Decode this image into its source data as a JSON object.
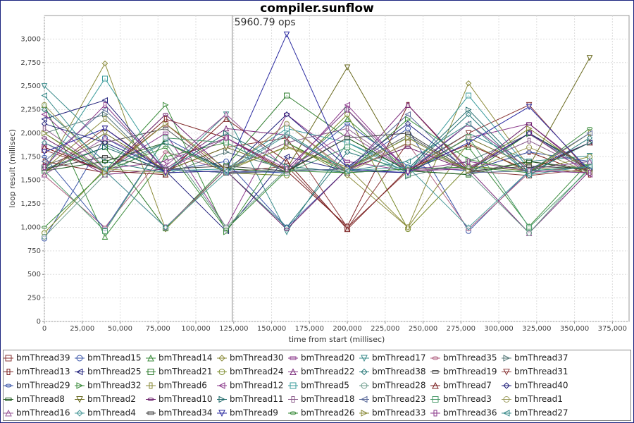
{
  "chart_data": {
    "type": "line",
    "title": "compiler.sunflow",
    "x_label": "time from start (millisec)",
    "y_label": "loop result (millisec)",
    "annotation": {
      "x": 124000,
      "label": "5960.79 ops"
    },
    "xlim": [
      0,
      386000
    ],
    "ylim": [
      0,
      3250
    ],
    "grid": true,
    "xticks": [
      0,
      {
        "value": 25000,
        "label": "25,000"
      },
      {
        "value": 50000,
        "label": "50,000"
      },
      {
        "value": 75000,
        "label": "75,000"
      },
      {
        "value": 100000,
        "label": "100,000"
      },
      {
        "value": 125000,
        "label": "125,000"
      },
      {
        "value": 150000,
        "label": "150,000"
      },
      {
        "value": 175000,
        "label": "175,000"
      },
      {
        "value": 200000,
        "label": "200,000"
      },
      {
        "value": 225000,
        "label": "225,000"
      },
      {
        "value": 250000,
        "label": "250,000"
      },
      {
        "value": 275000,
        "label": "275,000"
      },
      {
        "value": 300000,
        "label": "300,000"
      },
      {
        "value": 325000,
        "label": "325,000"
      },
      {
        "value": 350000,
        "label": "350,000"
      },
      {
        "value": 375000,
        "label": "375,000"
      }
    ],
    "yticks": [
      0,
      250,
      500,
      750,
      {
        "value": 1000,
        "label": "1,000"
      },
      {
        "value": 1250,
        "label": "1,250"
      },
      {
        "value": 1500,
        "label": "1,500"
      },
      {
        "value": 1750,
        "label": "1,750"
      },
      {
        "value": 2000,
        "label": "2,000"
      },
      {
        "value": 2250,
        "label": "2,250"
      },
      {
        "value": 2500,
        "label": "2,500"
      },
      {
        "value": 2750,
        "label": "2,750"
      },
      {
        "value": 3000,
        "label": "3,000"
      }
    ],
    "x": [
      0,
      40000,
      80000,
      120000,
      160000,
      200000,
      240000,
      280000,
      320000,
      360000
    ],
    "series": [
      {
        "name": "bmThread39",
        "color": "#8b3a3a",
        "values": [
          1820,
          1600,
          2100,
          1580,
          1650,
          990,
          1900,
          1600,
          1550,
          1620
        ]
      },
      {
        "name": "bmThread15",
        "color": "#3a55a8",
        "values": [
          880,
          1950,
          1600,
          1700,
          1000,
          1620,
          2050,
          960,
          1600,
          1580
        ]
      },
      {
        "name": "bmThread14",
        "color": "#3a8b3a",
        "values": [
          2300,
          900,
          1750,
          1900,
          1580,
          2150,
          1600,
          1850,
          1010,
          1700
        ]
      },
      {
        "name": "bmThread30",
        "color": "#8b8b3a",
        "values": [
          1600,
          2740,
          980,
          1620,
          1900,
          1550,
          1000,
          2530,
          1640,
          1580
        ]
      },
      {
        "name": "bmThread20",
        "color": "#8b3a8b",
        "values": [
          1850,
          1600,
          2000,
          1000,
          2200,
          1700,
          1600,
          1950,
          2100,
          1600
        ]
      },
      {
        "name": "bmThread17",
        "color": "#3a8b8b",
        "values": [
          2500,
          1880,
          1580,
          2200,
          950,
          1900,
          1620,
          2000,
          1700,
          1760
        ]
      },
      {
        "name": "bmThread35",
        "color": "#b06080",
        "values": [
          1550,
          1000,
          1800,
          1600,
          2100,
          1600,
          1890,
          980,
          1580,
          1650
        ]
      },
      {
        "name": "bmThread37",
        "color": "#557777",
        "values": [
          2000,
          2200,
          1560,
          1800,
          1620,
          2250,
          1540,
          1700,
          1990,
          1600
        ]
      },
      {
        "name": "bmThread13",
        "color": "#7a1f1f",
        "values": [
          1700,
          1580,
          2150,
          1950,
          1600,
          1010,
          2300,
          1600,
          1800,
          1560
        ]
      },
      {
        "name": "bmThread25",
        "color": "#1f1f7a",
        "values": [
          2150,
          2350,
          1600,
          960,
          1750,
          1600,
          1580,
          2100,
          1620,
          1900
        ]
      },
      {
        "name": "bmThread21",
        "color": "#2a7a2a",
        "values": [
          1600,
          1850,
          990,
          1650,
          2400,
          1950,
          1600,
          1560,
          2000,
          1640
        ]
      },
      {
        "name": "bmThread24",
        "color": "#7a8a2a",
        "values": [
          940,
          1620,
          1900,
          1580,
          1550,
          2200,
          980,
          1650,
          1600,
          1750
        ]
      },
      {
        "name": "bmThread22",
        "color": "#7a2a7a",
        "values": [
          1900,
          1560,
          1620,
          2050,
          1980,
          1580,
          2300,
          1620,
          940,
          1600
        ]
      },
      {
        "name": "bmThread38",
        "color": "#2a7a7a",
        "values": [
          2250,
          1700,
          1580,
          1600,
          1000,
          1800,
          1600,
          2200,
          1550,
          1950
        ]
      },
      {
        "name": "bmThread19",
        "color": "#555555",
        "values": [
          1650,
          1900,
          2050,
          1570,
          1600,
          1620,
          1980,
          1580,
          1700,
          1620
        ]
      },
      {
        "name": "bmThread31",
        "color": "#8b3a3a",
        "values": [
          1580,
          2050,
          1600,
          1850,
          1950,
          1000,
          1600,
          2000,
          2300,
          1580
        ]
      },
      {
        "name": "bmThread29",
        "color": "#3a55a8",
        "values": [
          1750,
          980,
          1950,
          1600,
          1580,
          2100,
          1650,
          1600,
          1800,
          1700
        ]
      },
      {
        "name": "bmThread32",
        "color": "#3a8b3a",
        "values": [
          2000,
          1600,
          2300,
          950,
          1900,
          1580,
          2150,
          1720,
          1600,
          1650
        ]
      },
      {
        "name": "bmThread6",
        "color": "#8b8b3a",
        "values": [
          1620,
          2150,
          1580,
          1600,
          1860,
          1640,
          1000,
          1900,
          1580,
          2000
        ]
      },
      {
        "name": "bmThread12",
        "color": "#8b3a8b",
        "values": [
          2200,
          1620,
          1700,
          1950,
          1580,
          2300,
          1600,
          1620,
          2000,
          1560
        ]
      },
      {
        "name": "bmThread5",
        "color": "#3a9b9b",
        "values": [
          1600,
          2580,
          1600,
          1620,
          2050,
          1900,
          1580,
          2400,
          1620,
          1700
        ]
      },
      {
        "name": "bmThread28",
        "color": "#6a9a8a",
        "values": [
          900,
          1560,
          1900,
          1000,
          1620,
          1600,
          1960,
          1580,
          940,
          1640
        ]
      },
      {
        "name": "bmThread7",
        "color": "#7a1f1f",
        "values": [
          1850,
          1600,
          1560,
          2150,
          1700,
          980,
          1620,
          1880,
          1600,
          1900
        ]
      },
      {
        "name": "bmThread40",
        "color": "#1f1f7a",
        "values": [
          2100,
          1900,
          1620,
          1580,
          2200,
          1640,
          2100,
          1600,
          2000,
          1620
        ]
      },
      {
        "name": "bmThread8",
        "color": "#1f5a1f",
        "values": [
          1600,
          1700,
          1900,
          1620,
          1590,
          1950,
          1600,
          1560,
          1700,
          1600
        ]
      },
      {
        "name": "bmThread2",
        "color": "#6a6a1f",
        "values": [
          1580,
          2000,
          1600,
          1850,
          1620,
          2700,
          1580,
          1950,
          1650,
          2800
        ]
      },
      {
        "name": "bmThread10",
        "color": "#6a1f6a",
        "values": [
          1950,
          1580,
          2200,
          1600,
          980,
          1620,
          1850,
          1600,
          2100,
          1580
        ]
      },
      {
        "name": "bmThread11",
        "color": "#1f6a6a",
        "values": [
          1620,
          1850,
          1600,
          2000,
          1650,
          1580,
          1620,
          2250,
          1580,
          1900
        ]
      },
      {
        "name": "bmThread18",
        "color": "#8a5a8a",
        "values": [
          2050,
          1600,
          1000,
          1620,
          1900,
          2050,
          1600,
          1640,
          1920,
          1600
        ]
      },
      {
        "name": "bmThread23",
        "color": "#5a6a9a",
        "values": [
          1700,
          2250,
          1620,
          1580,
          1600,
          1620,
          2200,
          1580,
          1600,
          2000
        ]
      },
      {
        "name": "bmThread3",
        "color": "#4a9a6a",
        "values": [
          1600,
          960,
          1950,
          1900,
          1580,
          1850,
          1560,
          1960,
          1000,
          1620
        ]
      },
      {
        "name": "bmThread1",
        "color": "#9a9a5a",
        "values": [
          2300,
          1620,
          1580,
          1600,
          2100,
          1580,
          1900,
          1600,
          1850,
          1580
        ]
      },
      {
        "name": "bmThread16",
        "color": "#9a5a9a",
        "values": [
          1560,
          1950,
          1650,
          2200,
          1620,
          2000,
          1600,
          2100,
          1620,
          1700
        ]
      },
      {
        "name": "bmThread4",
        "color": "#4a9a9a",
        "values": [
          1900,
          1600,
          1000,
          1580,
          1980,
          1600,
          1640,
          1000,
          1600,
          1640
        ]
      },
      {
        "name": "bmThread34",
        "color": "#444444",
        "values": [
          1620,
          1750,
          1620,
          1650,
          1600,
          1950,
          2000,
          1600,
          1650,
          1620
        ]
      },
      {
        "name": "bmThread9",
        "color": "#2a2aa0",
        "values": [
          1800,
          2050,
          1580,
          1600,
          3050,
          1620,
          1580,
          1900,
          2280,
          1600
        ]
      },
      {
        "name": "bmThread26",
        "color": "#3a8b3a",
        "values": [
          1000,
          1600,
          1850,
          980,
          1600,
          1580,
          1620,
          1640,
          1580,
          2050
        ]
      },
      {
        "name": "bmThread33",
        "color": "#8b8b3a",
        "values": [
          2000,
          1580,
          2100,
          1620,
          1850,
          1620,
          1950,
          1600,
          2050,
          1600
        ]
      },
      {
        "name": "bmThread36",
        "color": "#8b3a8b",
        "values": [
          1640,
          2300,
          1600,
          1950,
          1620,
          2250,
          1600,
          1700,
          1600,
          1580
        ]
      },
      {
        "name": "bmThread27",
        "color": "#3a8b8b",
        "values": [
          2400,
          1620,
          1900,
          1600,
          2000,
          1600,
          1700,
          2100,
          1560,
          1650
        ]
      }
    ]
  }
}
